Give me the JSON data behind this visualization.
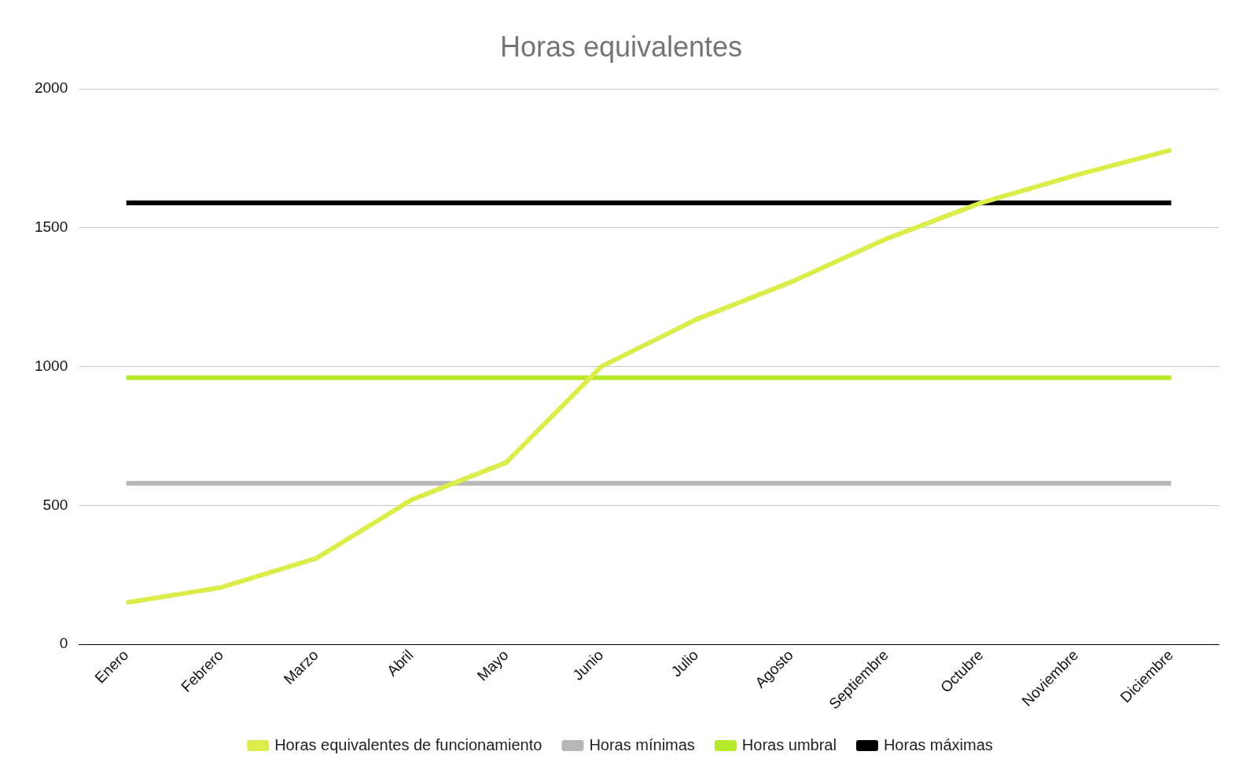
{
  "chart_data": {
    "type": "line",
    "title": "Horas equivalentes",
    "categories": [
      "Enero",
      "Febrero",
      "Marzo",
      "Abril",
      "Mayo",
      "Junio",
      "Julio",
      "Agosto",
      "Septiembre",
      "Octubre",
      "Noviembre",
      "Diciembre"
    ],
    "series": [
      {
        "name": "Horas equivalentes de funcionamiento",
        "color": "#dcec4a",
        "values": [
          150,
          205,
          310,
          520,
          655,
          1000,
          1170,
          1305,
          1460,
          1590,
          1690,
          1780
        ]
      },
      {
        "name": "Horas mínimas",
        "color": "#b7b7b7",
        "values": [
          580,
          580,
          580,
          580,
          580,
          580,
          580,
          580,
          580,
          580,
          580,
          580
        ]
      },
      {
        "name": "Horas umbral",
        "color": "#b5ea2a",
        "values": [
          960,
          960,
          960,
          960,
          960,
          960,
          960,
          960,
          960,
          960,
          960,
          960
        ]
      },
      {
        "name": "Horas máximas",
        "color": "#000000",
        "values": [
          1590,
          1590,
          1590,
          1590,
          1590,
          1590,
          1590,
          1590,
          1590,
          1590,
          1590,
          1590
        ]
      }
    ],
    "ylim": [
      0,
      2000
    ],
    "yticks": [
      0,
      500,
      1000,
      1500,
      2000
    ],
    "grid": "y",
    "legend": "bottom",
    "marker": "none",
    "line_style": "solid"
  }
}
